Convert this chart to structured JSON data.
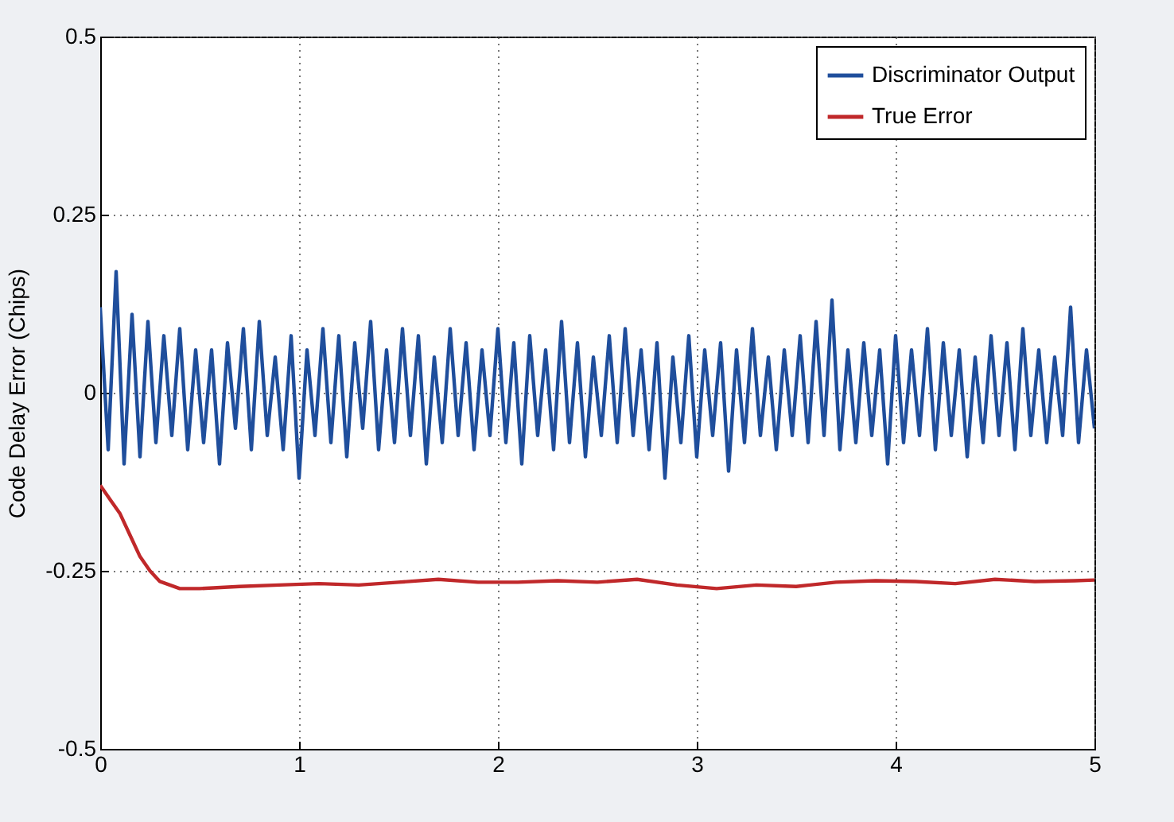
{
  "chart_data": {
    "type": "line",
    "ylabel": "Code Delay Error (Chips)",
    "xlim": [
      0,
      5
    ],
    "xticks": [
      0,
      1,
      2,
      3,
      4,
      5
    ],
    "ylim": [
      -0.5,
      0.5
    ],
    "yticks": [
      -0.5,
      {
        "value": -0.25,
        "label": "-0.25"
      },
      0,
      0.25,
      0.5
    ],
    "grid": true,
    "legend": "top right",
    "marker": "none",
    "line_style": "solid",
    "series": [
      {
        "name": "Discriminator Output",
        "color": "#1f4e9c",
        "x": [
          0,
          0.04,
          0.08,
          0.12,
          0.16,
          0.2,
          0.24,
          0.28,
          0.32,
          0.36,
          0.4,
          0.44,
          0.48,
          0.52,
          0.56,
          0.6,
          0.64,
          0.68,
          0.72,
          0.76,
          0.8,
          0.84,
          0.88,
          0.92,
          0.96,
          1,
          1.04,
          1.08,
          1.12,
          1.16,
          1.2,
          1.24,
          1.28,
          1.32,
          1.36,
          1.4,
          1.44,
          1.48,
          1.52,
          1.56,
          1.6,
          1.64,
          1.68,
          1.72,
          1.76,
          1.8,
          1.84,
          1.88,
          1.92,
          1.96,
          2,
          2.04,
          2.08,
          2.12,
          2.16,
          2.2,
          2.24,
          2.28,
          2.32,
          2.36,
          2.4,
          2.44,
          2.48,
          2.52,
          2.56,
          2.6,
          2.64,
          2.68,
          2.72,
          2.76,
          2.8,
          2.84,
          2.88,
          2.92,
          2.96,
          3,
          3.04,
          3.08,
          3.12,
          3.16,
          3.2,
          3.24,
          3.28,
          3.32,
          3.36,
          3.4,
          3.44,
          3.48,
          3.52,
          3.56,
          3.6,
          3.64,
          3.68,
          3.72,
          3.76,
          3.8,
          3.84,
          3.88,
          3.92,
          3.96,
          4,
          4.04,
          4.08,
          4.12,
          4.16,
          4.2,
          4.24,
          4.28,
          4.32,
          4.36,
          4.4,
          4.44,
          4.48,
          4.52,
          4.56,
          4.6,
          4.64,
          4.68,
          4.72,
          4.76,
          4.8,
          4.84,
          4.88,
          4.92,
          4.96,
          5
        ],
        "values": [
          0.12,
          -0.08,
          0.17,
          -0.1,
          0.11,
          -0.09,
          0.1,
          -0.07,
          0.08,
          -0.06,
          0.09,
          -0.08,
          0.06,
          -0.07,
          0.06,
          -0.1,
          0.07,
          -0.05,
          0.09,
          -0.08,
          0.1,
          -0.06,
          0.05,
          -0.08,
          0.08,
          -0.12,
          0.06,
          -0.06,
          0.09,
          -0.07,
          0.08,
          -0.09,
          0.07,
          -0.05,
          0.1,
          -0.08,
          0.06,
          -0.07,
          0.09,
          -0.06,
          0.08,
          -0.1,
          0.05,
          -0.07,
          0.09,
          -0.06,
          0.07,
          -0.08,
          0.06,
          -0.06,
          0.09,
          -0.07,
          0.07,
          -0.1,
          0.08,
          -0.06,
          0.06,
          -0.08,
          0.1,
          -0.07,
          0.07,
          -0.09,
          0.05,
          -0.06,
          0.08,
          -0.07,
          0.09,
          -0.06,
          0.06,
          -0.08,
          0.07,
          -0.12,
          0.05,
          -0.07,
          0.08,
          -0.09,
          0.06,
          -0.06,
          0.07,
          -0.11,
          0.06,
          -0.07,
          0.09,
          -0.06,
          0.05,
          -0.08,
          0.06,
          -0.06,
          0.08,
          -0.07,
          0.1,
          -0.06,
          0.13,
          -0.08,
          0.06,
          -0.07,
          0.07,
          -0.06,
          0.06,
          -0.1,
          0.08,
          -0.07,
          0.06,
          -0.06,
          0.09,
          -0.08,
          0.07,
          -0.06,
          0.06,
          -0.09,
          0.05,
          -0.07,
          0.08,
          -0.06,
          0.07,
          -0.08,
          0.09,
          -0.06,
          0.06,
          -0.07,
          0.05,
          -0.06,
          0.12,
          -0.07,
          0.06,
          -0.05
        ]
      },
      {
        "name": "True Error",
        "color": "#c0282a",
        "x": [
          0,
          0.05,
          0.1,
          0.15,
          0.2,
          0.25,
          0.3,
          0.4,
          0.5,
          0.7,
          0.9,
          1.1,
          1.3,
          1.5,
          1.7,
          1.9,
          2.1,
          2.3,
          2.5,
          2.7,
          2.9,
          3.1,
          3.3,
          3.5,
          3.7,
          3.9,
          4.1,
          4.3,
          4.5,
          4.7,
          4.9,
          5
        ],
        "values": [
          -0.13,
          -0.15,
          -0.17,
          -0.2,
          -0.23,
          -0.25,
          -0.265,
          -0.275,
          -0.275,
          -0.272,
          -0.27,
          -0.268,
          -0.27,
          -0.266,
          -0.262,
          -0.266,
          -0.266,
          -0.264,
          -0.266,
          -0.262,
          -0.27,
          -0.275,
          -0.27,
          -0.272,
          -0.266,
          -0.264,
          -0.265,
          -0.268,
          -0.262,
          -0.265,
          -0.264,
          -0.263
        ]
      }
    ]
  }
}
